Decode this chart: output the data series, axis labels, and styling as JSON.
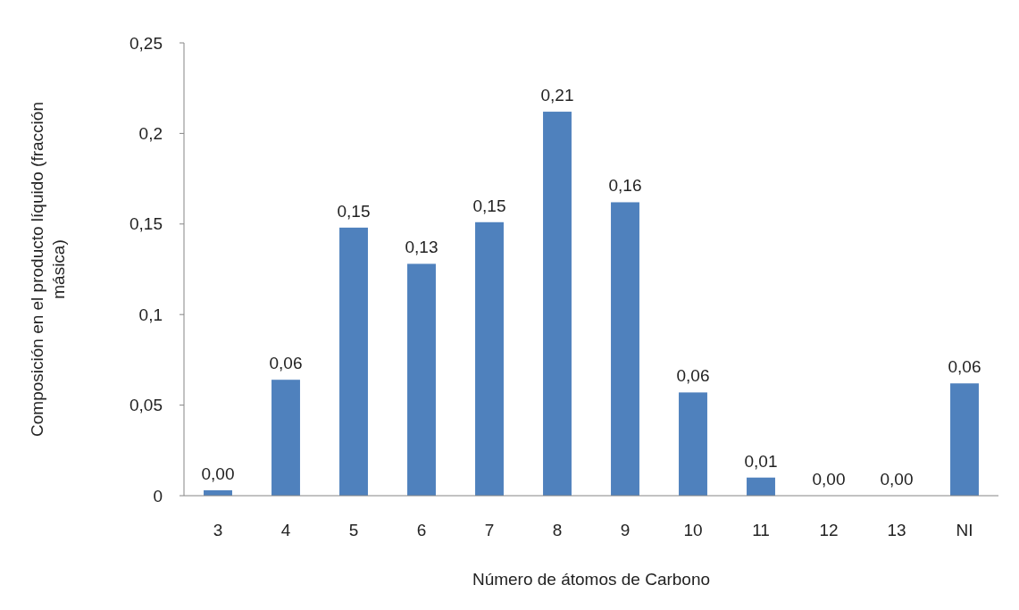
{
  "chart_data": {
    "type": "bar",
    "xlabel": "Número de átomos de Carbono",
    "ylabel": "Composición en el producto líquido (fracción másica)",
    "categories": [
      "3",
      "4",
      "5",
      "6",
      "7",
      "8",
      "9",
      "10",
      "11",
      "12",
      "13",
      "NI"
    ],
    "values": [
      0.003,
      0.064,
      0.148,
      0.128,
      0.151,
      0.212,
      0.162,
      0.057,
      0.01,
      0,
      0,
      0.062
    ],
    "value_labels": [
      "0,00",
      "0,06",
      "0,15",
      "0,13",
      "0,15",
      "0,21",
      "0,16",
      "0,06",
      "0,01",
      "0,00",
      "0,00",
      "0,06"
    ],
    "color": "#4f81bd",
    "ylim": [
      0,
      0.25
    ],
    "yticks": [
      {
        "value": 0,
        "label": "0"
      },
      {
        "value": 0.05,
        "label": "0,05"
      },
      {
        "value": 0.1,
        "label": "0,1"
      },
      {
        "value": 0.15,
        "label": "0,15"
      },
      {
        "value": 0.2,
        "label": "0,2"
      },
      {
        "value": 0.25,
        "label": "0,25"
      }
    ],
    "grid": false
  }
}
